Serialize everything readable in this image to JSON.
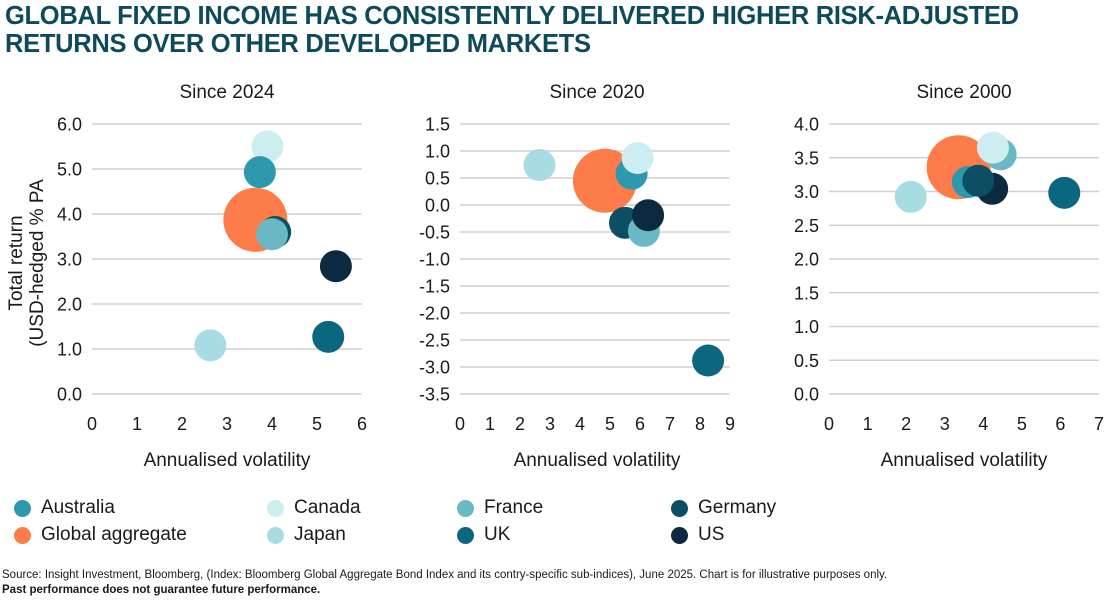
{
  "title": {
    "line1": "GLOBAL FIXED INCOME HAS CONSISTENTLY DELIVERED HIGHER RISK-ADJUSTED",
    "line2": "RETURNS OVER OTHER DEVELOPED MARKETS"
  },
  "colors": {
    "title": "#0c4a5c",
    "Australia": "#2e98ad",
    "Global aggregate": "#fd7c4a",
    "Canada": "#cdeef0",
    "Japan": "#a7dce2",
    "France": "#6ab8c4",
    "UK": "#0b677f",
    "Germany": "#0c4f63",
    "US": "#0b2a3f"
  },
  "legend": [
    {
      "name": "Australia",
      "color": "#2e98ad"
    },
    {
      "name": "Global aggregate",
      "color": "#fd7c4a"
    },
    {
      "name": "Canada",
      "color": "#cdeef0"
    },
    {
      "name": "Japan",
      "color": "#a7dce2"
    },
    {
      "name": "France",
      "color": "#6ab8c4"
    },
    {
      "name": "UK",
      "color": "#0b677f"
    },
    {
      "name": "Germany",
      "color": "#0c4f63"
    },
    {
      "name": "US",
      "color": "#0b2a3f"
    }
  ],
  "footer": {
    "source": "Source: Insight Investment, Bloomberg, (Index: Bloomberg Global Aggregate Bond Index and its contry-specific sub-indices), June 2025. Chart is for illustrative purposes only.",
    "disclaimer": "Past performance does not guarantee future performance."
  },
  "chart_data": [
    {
      "type": "scatter",
      "title": "Since 2024",
      "xlabel": "Annualised volatility",
      "ylabel": "Total return (USD-hedged % PA",
      "xlim": [
        0,
        6
      ],
      "ylim": [
        0,
        6
      ],
      "xticks": [
        "0",
        "1",
        "2",
        "3",
        "4",
        "5",
        "6"
      ],
      "yticks": [
        "0.0",
        "1.0",
        "2.0",
        "3.0",
        "4.0",
        "5.0",
        "6.0"
      ],
      "grid": "horizontal",
      "series": [
        {
          "name": "Global aggregate",
          "x": 3.63,
          "y": 3.87
        },
        {
          "name": "Canada",
          "x": 3.9,
          "y": 5.5
        },
        {
          "name": "Australia",
          "x": 3.73,
          "y": 4.93
        },
        {
          "name": "Germany",
          "x": 4.07,
          "y": 3.6
        },
        {
          "name": "France",
          "x": 4.0,
          "y": 3.55
        },
        {
          "name": "US",
          "x": 5.42,
          "y": 2.84
        },
        {
          "name": "UK",
          "x": 5.25,
          "y": 1.27
        },
        {
          "name": "Japan",
          "x": 2.63,
          "y": 1.08
        }
      ]
    },
    {
      "type": "scatter",
      "title": "Since 2020",
      "xlabel": "Annualised volatility",
      "ylabel": "",
      "xlim": [
        0,
        9
      ],
      "ylim": [
        -3.5,
        1.5
      ],
      "xticks": [
        "0",
        "1",
        "2",
        "3",
        "4",
        "5",
        "6",
        "7",
        "8",
        "9"
      ],
      "yticks": [
        "-3.5",
        "-3.0",
        "-2.5",
        "-2.0",
        "-1.5",
        "-1.0",
        "-0.5",
        "0.0",
        "0.5",
        "1.0",
        "1.5"
      ],
      "grid": "horizontal",
      "series": [
        {
          "name": "Global aggregate",
          "x": 4.83,
          "y": 0.45
        },
        {
          "name": "Japan",
          "x": 2.65,
          "y": 0.74
        },
        {
          "name": "Australia",
          "x": 5.72,
          "y": 0.58
        },
        {
          "name": "Canada",
          "x": 5.92,
          "y": 0.87
        },
        {
          "name": "Germany",
          "x": 5.5,
          "y": -0.33
        },
        {
          "name": "France",
          "x": 6.13,
          "y": -0.48
        },
        {
          "name": "US",
          "x": 6.27,
          "y": -0.19
        },
        {
          "name": "UK",
          "x": 8.27,
          "y": -2.88
        }
      ]
    },
    {
      "type": "scatter",
      "title": "Since 2000",
      "xlabel": "Annualised volatility",
      "ylabel": "",
      "xlim": [
        0,
        7
      ],
      "ylim": [
        0,
        4
      ],
      "xticks": [
        "0",
        "1",
        "2",
        "3",
        "4",
        "5",
        "6",
        "7"
      ],
      "yticks": [
        "0.0",
        "0.5",
        "1.0",
        "1.5",
        "2.0",
        "2.5",
        "3.0",
        "3.5",
        "4.0"
      ],
      "grid": "horizontal",
      "series": [
        {
          "name": "Global aggregate",
          "x": 3.36,
          "y": 3.36
        },
        {
          "name": "Japan",
          "x": 2.12,
          "y": 2.92
        },
        {
          "name": "France",
          "x": 4.45,
          "y": 3.55
        },
        {
          "name": "Canada",
          "x": 4.25,
          "y": 3.65
        },
        {
          "name": "Australia",
          "x": 3.6,
          "y": 3.14
        },
        {
          "name": "US",
          "x": 4.23,
          "y": 3.04
        },
        {
          "name": "Germany",
          "x": 3.87,
          "y": 3.16
        },
        {
          "name": "UK",
          "x": 6.1,
          "y": 2.98
        }
      ]
    }
  ]
}
